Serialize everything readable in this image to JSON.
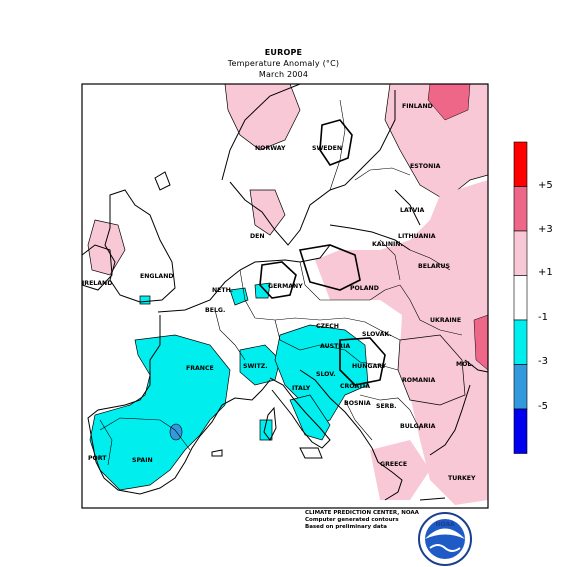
{
  "header": {
    "title": "EUROPE",
    "subtitle": "Temperature Anomaly (°C)",
    "period": "March 2004"
  },
  "colorbar": {
    "labels": [
      "+5",
      "+3",
      "+1",
      "-1",
      "-3",
      "-5"
    ],
    "colors": [
      "#ff0000",
      "#ee6688",
      "#f9c8d6",
      "#ffffff",
      "#00eeee",
      "#3399dd",
      "#0000ee"
    ]
  },
  "countries": {
    "finland": "FINLAND",
    "norway": "NORWAY",
    "sweden": "SWEDEN",
    "estonia": "ESTONIA",
    "latvia": "LATVIA",
    "lithuania": "LITHUANIA",
    "kaliningrad": "KALININ.",
    "belarus": "BELARUS",
    "denmark": "DEN",
    "germany": "GERMANY",
    "poland": "POLAND",
    "netherlands": "NETH.",
    "belgium": "BELG.",
    "ireland": "IRELAND",
    "england": "ENGLAND",
    "ukraine": "UKRAINE",
    "czech": "CZECH",
    "slovakia": "SLOVAK.",
    "austria": "AUSTRIA",
    "hungary": "HUNGARY",
    "switzerland": "SWITZ.",
    "slovenia": "SLOV.",
    "croatia": "CROATIA",
    "bosnia": "BOSNIA",
    "serbia": "SERB.",
    "romania": "ROMANIA",
    "moldova": "MOL.",
    "bulgaria": "BULGARIA",
    "france": "FRANCE",
    "italy": "ITALY",
    "spain": "SPAIN",
    "portugal": "PORT",
    "greece": "GREECE",
    "turkey": "TURKEY"
  },
  "credits": {
    "line1": "CLIMATE PREDICTION CENTER, NOAA",
    "line2": "Computer generated contours",
    "line3": "Based on preliminary data"
  },
  "logo": {
    "text": "NOAA"
  }
}
